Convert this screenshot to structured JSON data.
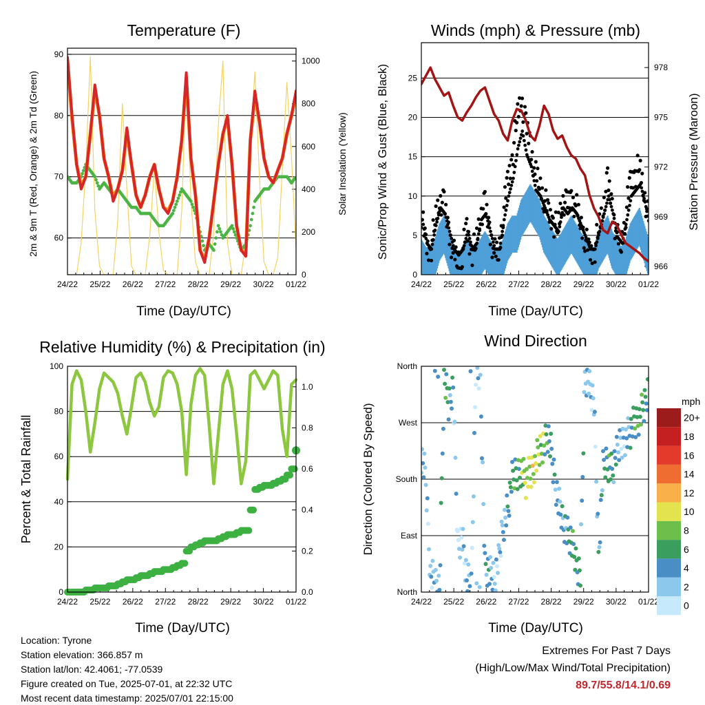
{
  "chart_data": [
    {
      "type": "line",
      "title": "Temperature (F)",
      "xlabel": "Time (Day/UTC)",
      "ylabel": "2m & 9m T (Red, Orange) & 2m Td (Green)",
      "y2label": "Solar Insolation (Yellow)",
      "ylim": [
        54,
        91
      ],
      "y2lim": [
        0,
        1060
      ],
      "yticks": [
        "60",
        "70",
        "80",
        "90"
      ],
      "y2ticks": [
        "0",
        "200",
        "400",
        "600",
        "800",
        "1000"
      ],
      "grid": true,
      "colors": {
        "t2m": "#d62728",
        "t9m": "#ff8c1a",
        "td": "#4bb444",
        "solar": "#f4d35e"
      },
      "series": [
        {
          "key": "t2m",
          "values": [
            89.5,
            80,
            72,
            68,
            70,
            77,
            85,
            80,
            73,
            70,
            66,
            68,
            71,
            78,
            72,
            67,
            65,
            67,
            70,
            72,
            68,
            65,
            64,
            66,
            70,
            76,
            87,
            73,
            67,
            58,
            56,
            60,
            66,
            72,
            77,
            80,
            72,
            62,
            58,
            57,
            76,
            84,
            79,
            73,
            70,
            69,
            71,
            73,
            77,
            80,
            84
          ]
        },
        {
          "key": "t9m",
          "values": [
            89,
            79.5,
            72,
            68.5,
            70,
            77,
            84,
            80,
            73,
            70,
            66.5,
            68,
            71,
            77,
            72,
            67,
            65,
            67,
            70,
            72,
            68,
            65,
            64.5,
            66,
            70,
            76,
            86,
            73,
            67,
            58,
            56.5,
            60,
            66,
            72,
            77,
            79.5,
            72,
            62,
            58,
            57.5,
            76,
            83,
            79,
            73,
            70,
            69,
            71,
            73,
            77,
            80,
            83
          ]
        },
        {
          "key": "td",
          "values": [
            70,
            69,
            69,
            70,
            72,
            71,
            70,
            68,
            69,
            68,
            67,
            68,
            67,
            66,
            65,
            65,
            64,
            64,
            64,
            63,
            62,
            62,
            63,
            64,
            66,
            68,
            67,
            66,
            64,
            61,
            58,
            59,
            58,
            62,
            60,
            61,
            62,
            60,
            58,
            59,
            62,
            66,
            67,
            68,
            68,
            69,
            70,
            70,
            70,
            69,
            70
          ]
        },
        {
          "key": "solar",
          "values": [
            0,
            0,
            0,
            150,
            500,
            1020,
            300,
            40,
            0,
            0,
            0,
            250,
            800,
            400,
            40,
            0,
            0,
            0,
            180,
            500,
            200,
            20,
            0,
            0,
            0,
            300,
            950,
            350,
            60,
            0,
            0,
            0,
            200,
            700,
            1000,
            150,
            0,
            0,
            0,
            150,
            600,
            950,
            450,
            60,
            0,
            0,
            80,
            500,
            900,
            550,
            120
          ]
        }
      ]
    },
    {
      "type": "scatter",
      "title": "Winds (mph) & Pressure (mb)",
      "xlabel": "Time (Day/UTC)",
      "ylabel": "Sonic/Prop Wind & Gust (Blue, Black)",
      "y2label": "Station Pressure (Maroon)",
      "ylim": [
        0,
        29.5
      ],
      "y2lim": [
        965.5,
        979.5
      ],
      "yticks": [
        "0",
        "5",
        "10",
        "15",
        "20",
        "25"
      ],
      "y2ticks": [
        "966",
        "969",
        "972",
        "975",
        "978"
      ],
      "grid": true,
      "colors": {
        "wind": "#4f9fd8",
        "gust": "#000000",
        "pressure": "#a31515"
      },
      "series": [
        {
          "key": "wind",
          "values": [
            3,
            2,
            2,
            3,
            5,
            6,
            4,
            2,
            1,
            2,
            3,
            2,
            2,
            3,
            4,
            3,
            2,
            2,
            3,
            5,
            6,
            6,
            8,
            9,
            10,
            9,
            8,
            6,
            5,
            4,
            3,
            4,
            5,
            6,
            5,
            4,
            3,
            2,
            2,
            4,
            5,
            6,
            4,
            3,
            2,
            3,
            5,
            6,
            7,
            5,
            3
          ]
        },
        {
          "key": "gust",
          "values": [
            8,
            4,
            3,
            7,
            10,
            9,
            6,
            3,
            2,
            3,
            6,
            3,
            4,
            8,
            9,
            6,
            3,
            3,
            8,
            12,
            15,
            20,
            23,
            19,
            17,
            13,
            12,
            10,
            8,
            7,
            6,
            10,
            9,
            10,
            9,
            7,
            5,
            3,
            3,
            6,
            9,
            12,
            9,
            5,
            4,
            8,
            12,
            13,
            14,
            11,
            7
          ]
        },
        {
          "key": "pressure",
          "values": [
            977,
            977.5,
            978,
            977.3,
            976.8,
            976.3,
            976.5,
            975.7,
            975,
            974.8,
            975.3,
            975.7,
            976.2,
            976.6,
            976.8,
            976,
            975.2,
            974.8,
            974,
            973.6,
            974.8,
            975.5,
            975.4,
            974.8,
            973.9,
            973.6,
            974.5,
            975.7,
            975.2,
            974.2,
            973.7,
            973.9,
            973.2,
            972.7,
            972.5,
            971.9,
            971.5,
            970.3,
            969.5,
            969,
            968.2,
            968,
            968.7,
            968.5,
            967.9,
            967.4,
            967.2,
            967,
            966.8,
            966.5,
            966.3
          ]
        }
      ]
    },
    {
      "type": "line",
      "title": "Relative Humidity (%) & Precipitation (in)",
      "xlabel": "Time (Day/UTC)",
      "ylabel": "Percent & Total Rainfall",
      "ylim": [
        0,
        100
      ],
      "y2lim": [
        0,
        1.1
      ],
      "yticks": [
        "0",
        "20",
        "40",
        "60",
        "80",
        "100"
      ],
      "y2ticks": [
        "0.0",
        "0.2",
        "0.4",
        "0.6",
        "0.8",
        "1.0"
      ],
      "grid": true,
      "colors": {
        "rh": "#8dc63f",
        "precip": "#3cb041"
      },
      "series": [
        {
          "key": "rh",
          "values": [
            50,
            92,
            98,
            94,
            80,
            62,
            75,
            90,
            97,
            95,
            93,
            88,
            78,
            70,
            82,
            95,
            97,
            93,
            84,
            78,
            82,
            95,
            98,
            97,
            92,
            80,
            52,
            83,
            96,
            99,
            96,
            74,
            48,
            70,
            92,
            98,
            90,
            70,
            48,
            58,
            96,
            98,
            94,
            90,
            94,
            98,
            96,
            72,
            60,
            92,
            94
          ]
        },
        {
          "key": "precip",
          "values": [
            0,
            0,
            0,
            0,
            0.01,
            0.01,
            0.02,
            0.02,
            0.02,
            0.03,
            0.03,
            0.04,
            0.05,
            0.06,
            0.06,
            0.07,
            0.08,
            0.08,
            0.09,
            0.1,
            0.1,
            0.11,
            0.11,
            0.12,
            0.13,
            0.14,
            0.2,
            0.22,
            0.23,
            0.24,
            0.25,
            0.25,
            0.25,
            0.26,
            0.27,
            0.28,
            0.28,
            0.29,
            0.3,
            0.3,
            0.4,
            0.5,
            0.51,
            0.52,
            0.52,
            0.53,
            0.54,
            0.55,
            0.57,
            0.6,
            0.69
          ]
        }
      ]
    },
    {
      "type": "scatter",
      "title": "Wind Direction",
      "xlabel": "Time (Day/UTC)",
      "ylabel": "Direction (Colored By Speed)",
      "yticks": [
        "North",
        "East",
        "South",
        "West",
        "North"
      ],
      "ylim": [
        0,
        360
      ],
      "legend": {
        "title": "mph",
        "labels": [
          "0",
          "2",
          "4",
          "6",
          "8",
          "10",
          "12",
          "14",
          "16",
          "18",
          "20+"
        ],
        "colors": [
          "#c6e9fb",
          "#8cc8ec",
          "#4a8ec6",
          "#3a9e5e",
          "#6cbf4a",
          "#e3e24f",
          "#f9b04a",
          "#f06d32",
          "#e23b2b",
          "#c3201f",
          "#9c1b1b"
        ],
        "placement": "right"
      },
      "series": [
        {
          "name": "direction",
          "values": [
            220,
            180,
            30,
            20,
            10,
            340,
            300,
            330,
            80,
            90,
            20,
            10,
            350,
            345,
            40,
            30,
            20,
            50,
            110,
            130,
            180,
            190,
            200,
            180,
            190,
            205,
            230,
            240,
            250,
            200,
            150,
            120,
            100,
            80,
            50,
            30,
            350,
            330,
            300,
            60,
            200,
            210,
            190,
            220,
            240,
            250,
            260,
            270,
            280,
            300,
            330
          ]
        }
      ]
    }
  ],
  "x_ticks": [
    "24/22",
    "25/22",
    "26/22",
    "27/22",
    "28/22",
    "29/22",
    "30/22",
    "01/22"
  ],
  "info": {
    "location": "Location: Tyrone",
    "elevation": "Station elevation: 366.857 m",
    "latlon": "Station lat/lon: 42.4061; -77.0539",
    "created": "Figure created on Tue, 2025-07-01, at 22:32 UTC",
    "recent": "Most recent data timestamp: 2025/07/01 22:15:00"
  },
  "extremes": {
    "line1": "Extremes For Past 7 Days",
    "line2": "(High/Low/Max Wind/Total Precipitation)",
    "values": "89.7/55.8/14.1/0.69"
  }
}
